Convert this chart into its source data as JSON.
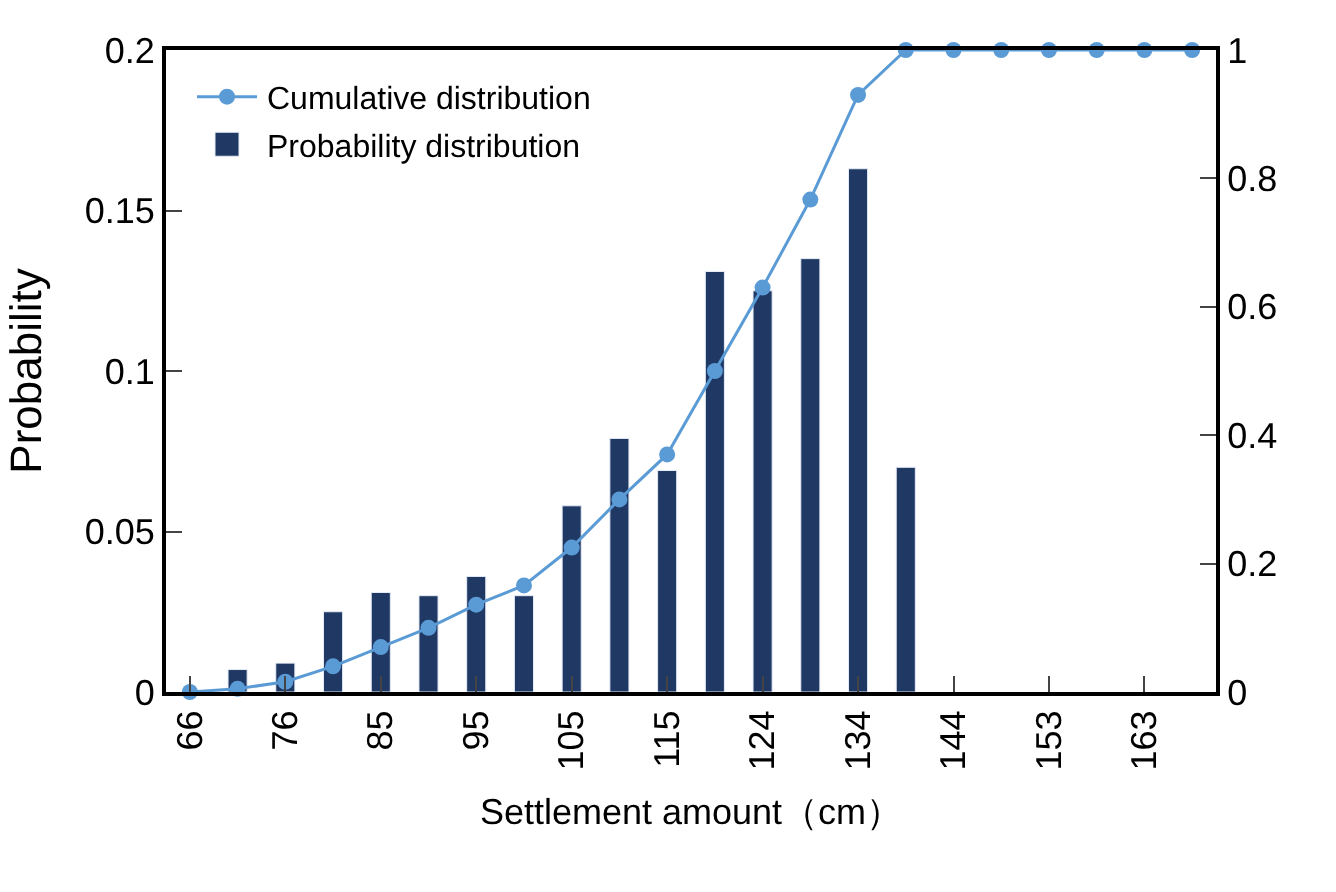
{
  "chart_data": {
    "type": "bar",
    "xlabel": "Settlement amount（cm）",
    "ylabel": "Probability",
    "categories": [
      "66",
      null,
      "76",
      null,
      "85",
      null,
      "95",
      null,
      "105",
      null,
      "115",
      null,
      "124",
      null,
      "134",
      null,
      "144",
      null,
      "153",
      null,
      "163",
      null
    ],
    "series": [
      {
        "name": "Cumulative distribution",
        "type": "line",
        "axis": "y2",
        "color": "#5b9bd5",
        "marker": "circle",
        "values": [
          0,
          0.005,
          0.016,
          0.04,
          0.07,
          0.1,
          0.136,
          0.166,
          0.225,
          0.3,
          0.37,
          0.5,
          0.63,
          0.767,
          0.93,
          1,
          1,
          1,
          1,
          1,
          1,
          1
        ]
      },
      {
        "name": "Probability distribution",
        "color": "#1f3864",
        "values": [
          null,
          0.007,
          0.009,
          0.025,
          0.031,
          0.03,
          0.036,
          0.03,
          0.058,
          0.079,
          0.069,
          0.131,
          0.125,
          0.135,
          0.163,
          0.07,
          null,
          null,
          null,
          null,
          null,
          null
        ]
      }
    ],
    "ylim": [
      0,
      0.2
    ],
    "yticks": [
      0,
      0.05,
      0.1,
      0.15,
      0.2
    ],
    "y2lim": [
      0,
      1
    ],
    "y2ticks": [
      0,
      0.2,
      0.4,
      0.6,
      0.8,
      1
    ],
    "legend": "top left"
  }
}
